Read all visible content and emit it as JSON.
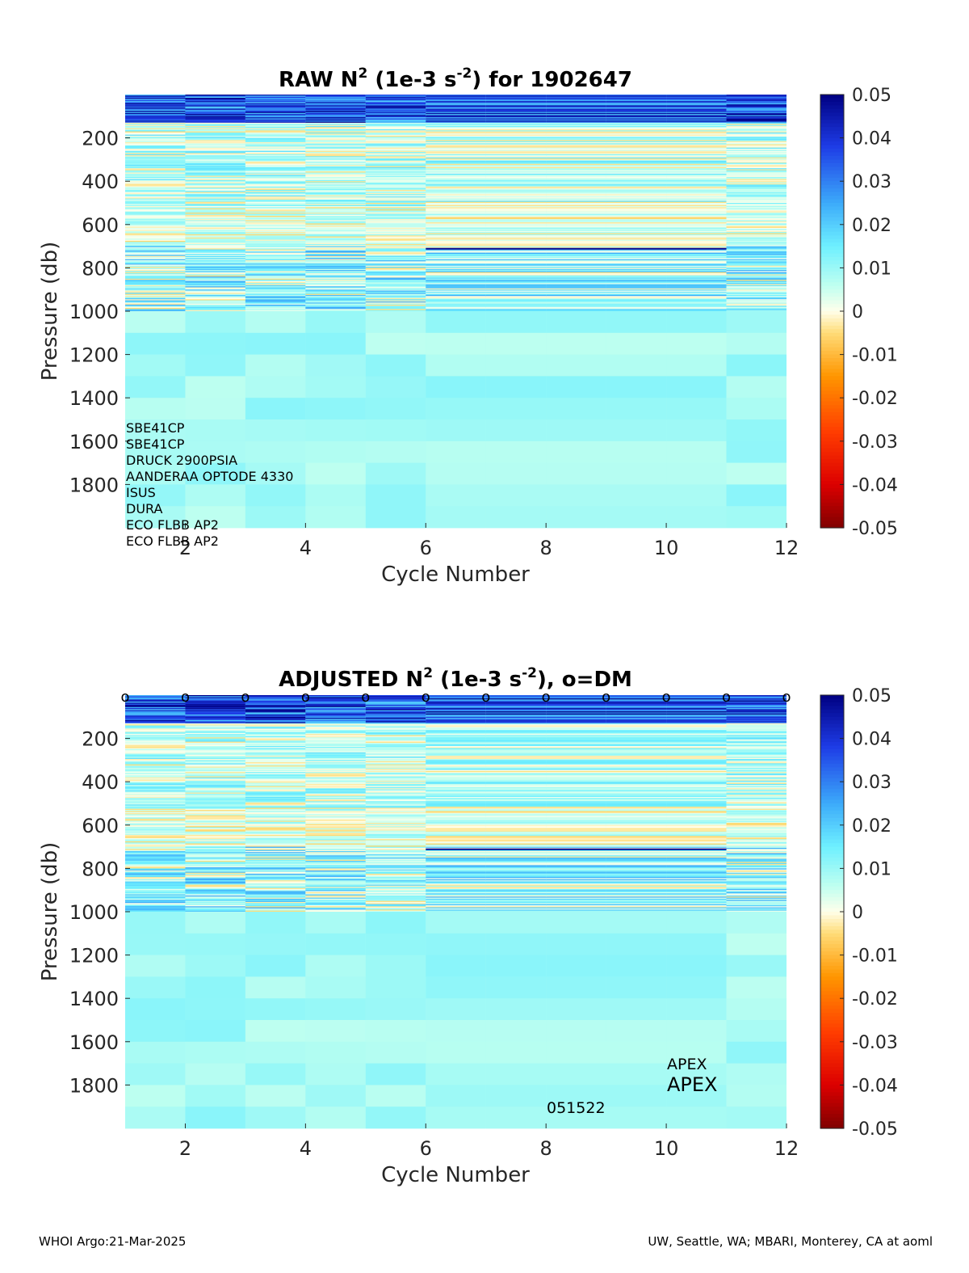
{
  "chart_data": [
    {
      "type": "heatmap",
      "id": "raw",
      "title_parts": [
        "RAW N",
        "2",
        " (1e-3 s",
        "-2",
        ") for 1902647"
      ],
      "xlabel": "Cycle Number",
      "ylabel": "Pressure (db)",
      "xlim": [
        1,
        12
      ],
      "ylim": [
        2000,
        0
      ],
      "xticks": [
        "2",
        "4",
        "6",
        "8",
        "10",
        "12"
      ],
      "yticks": [
        "200",
        "400",
        "600",
        "800",
        "1000",
        "1200",
        "1400",
        "1600",
        "1800"
      ],
      "colorbar": {
        "range": [
          -0.05,
          0.05
        ],
        "ticks": [
          "0.05",
          "0.04",
          "0.03",
          "0.02",
          "0.01",
          "0",
          "-0.01",
          "-0.02",
          "-0.03",
          "-0.04",
          "-0.05"
        ]
      },
      "sensors": [
        "SBE41CP",
        "SBE41CP",
        "DRUCK 2900PSIA",
        "AANDERAA OPTODE 4330",
        "ISUS",
        "DURA",
        "ECO FLBB AP2",
        "ECO FLBB AP2"
      ],
      "dm_markers": [],
      "annotations": []
    },
    {
      "type": "heatmap",
      "id": "adjusted",
      "title_parts": [
        "ADJUSTED N",
        "2",
        " (1e-3 s",
        "-2",
        "), o=DM"
      ],
      "xlabel": "Cycle Number",
      "ylabel": "Pressure (db)",
      "xlim": [
        1,
        12
      ],
      "ylim": [
        2000,
        0
      ],
      "xticks": [
        "2",
        "4",
        "6",
        "8",
        "10",
        "12"
      ],
      "yticks": [
        "200",
        "400",
        "600",
        "800",
        "1000",
        "1200",
        "1400",
        "1600",
        "1800"
      ],
      "colorbar": {
        "range": [
          -0.05,
          0.05
        ],
        "ticks": [
          "0.05",
          "0.04",
          "0.03",
          "0.02",
          "0.01",
          "0",
          "-0.01",
          "-0.02",
          "-0.03",
          "-0.04",
          "-0.05"
        ]
      },
      "sensors": [],
      "dm_markers": [
        "o",
        "o",
        "o",
        "o",
        "o",
        "o",
        "o",
        "o",
        "o",
        "o",
        "o",
        "o"
      ],
      "annotations": [
        "APEX",
        "APEX",
        "051522"
      ]
    }
  ],
  "footer": {
    "left": "WHOI Argo:21-Mar-2025",
    "right": "UW, Seattle, WA; MBARI, Monterey, CA at aoml"
  }
}
